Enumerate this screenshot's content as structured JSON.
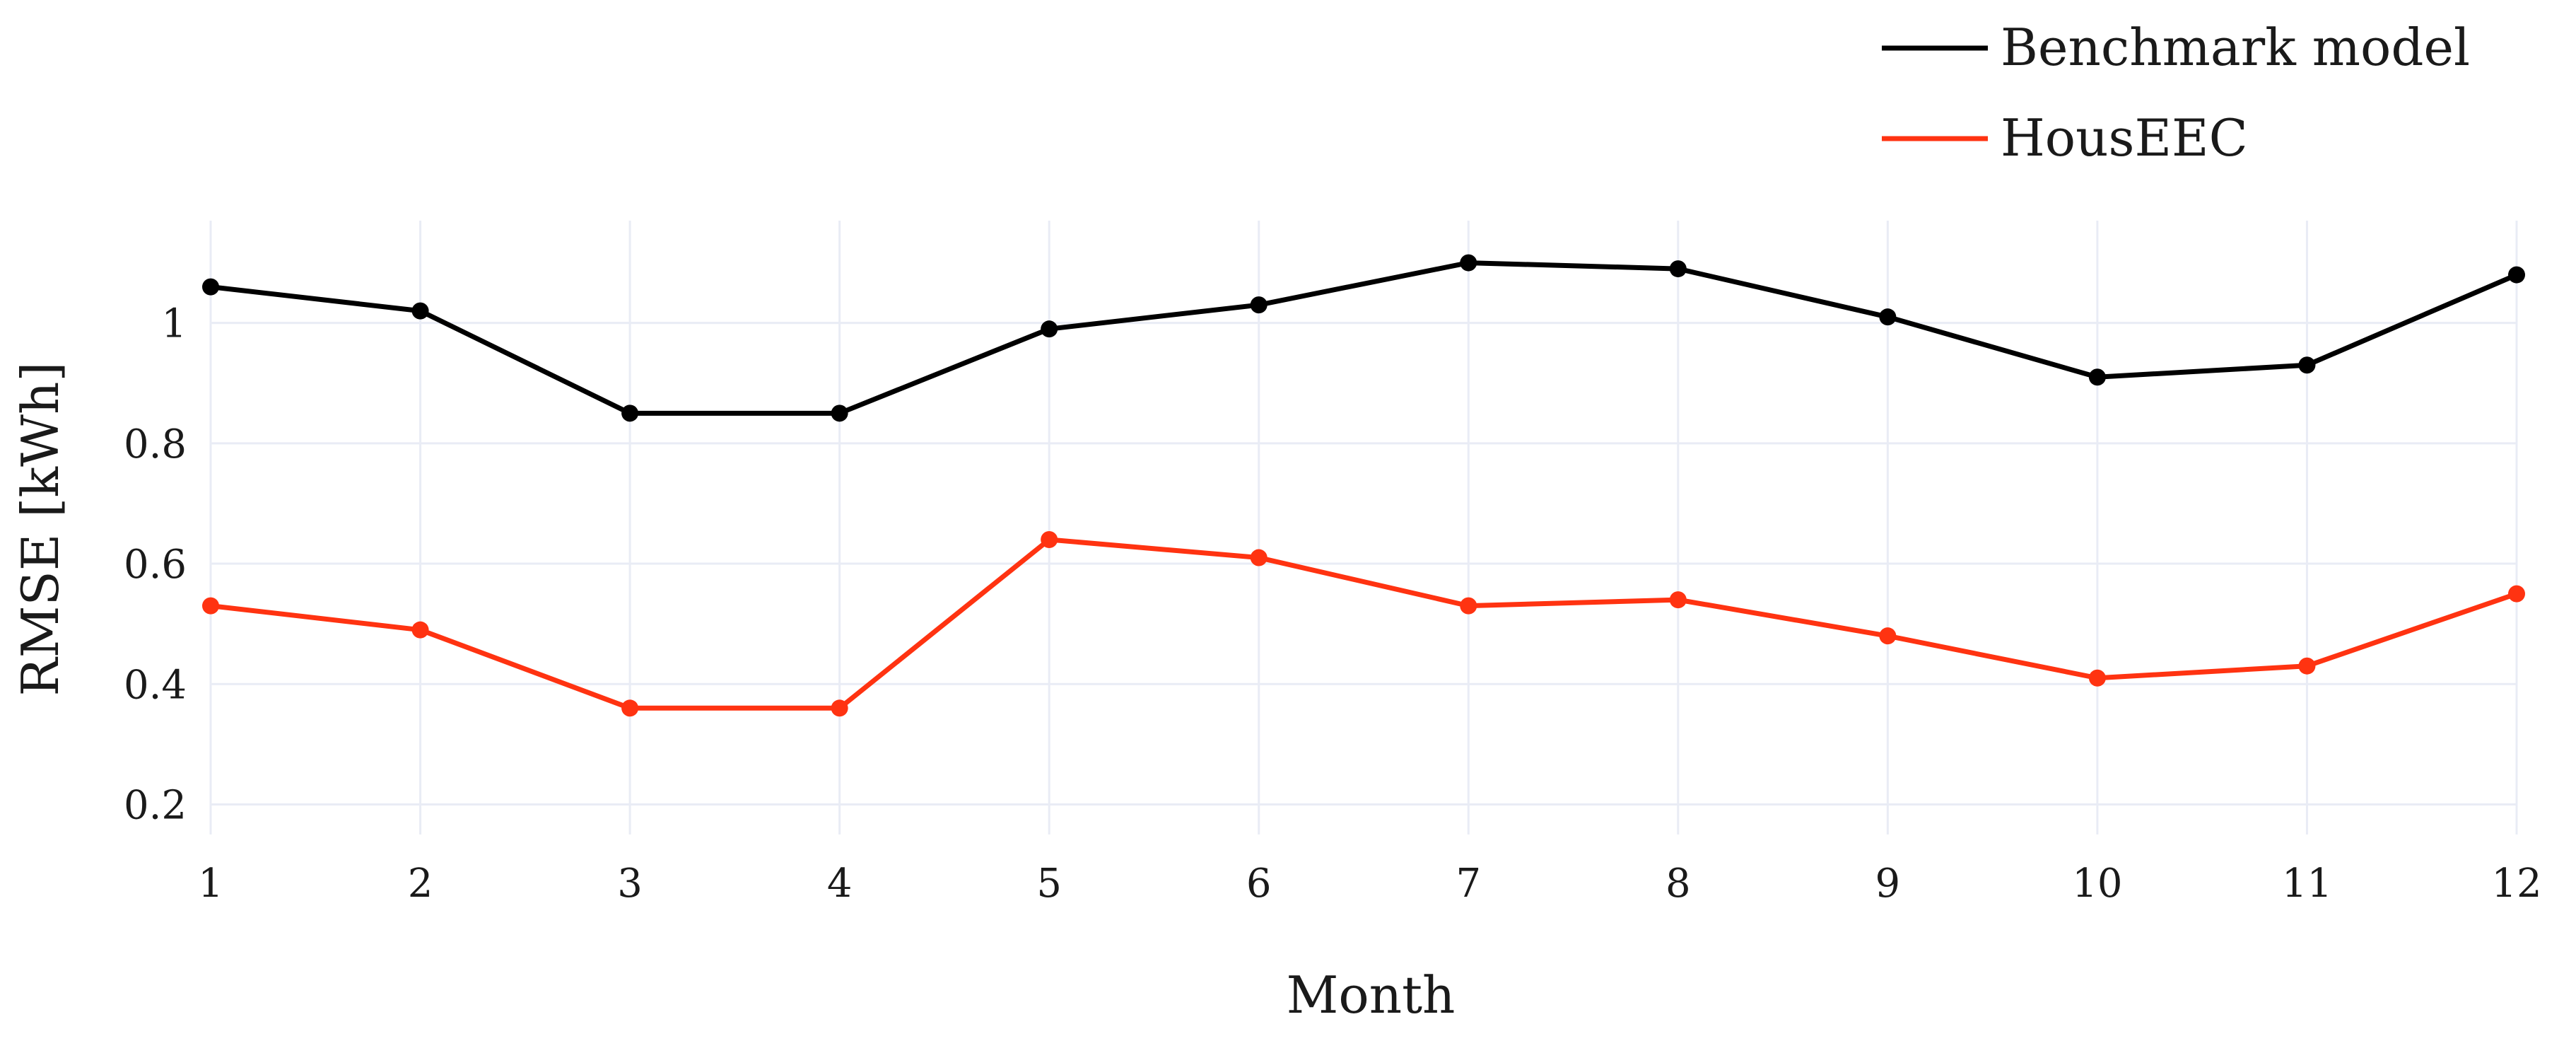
{
  "chart_data": {
    "type": "line",
    "title": "",
    "xlabel": "Month",
    "ylabel": "RMSE [kWh]",
    "x": [
      1,
      2,
      3,
      4,
      5,
      6,
      7,
      8,
      9,
      10,
      11,
      12
    ],
    "x_tick_labels": [
      "1",
      "2",
      "3",
      "4",
      "5",
      "6",
      "7",
      "8",
      "9",
      "10",
      "11",
      "12"
    ],
    "xlim": [
      1,
      12
    ],
    "ylim": [
      0.15,
      1.17
    ],
    "y_ticks": [
      0.2,
      0.4,
      0.6,
      0.8,
      1
    ],
    "y_tick_labels": [
      "0.2",
      "0.4",
      "0.6",
      "0.8",
      "1"
    ],
    "grid": true,
    "legend_position": "top-right",
    "series": [
      {
        "name": "Benchmark model",
        "color": "#000000",
        "values": [
          1.06,
          1.02,
          0.85,
          0.85,
          0.99,
          1.03,
          1.1,
          1.09,
          1.01,
          0.91,
          0.93,
          1.08
        ]
      },
      {
        "name": "HousEEC",
        "color": "#ff3311",
        "values": [
          0.53,
          0.49,
          0.36,
          0.36,
          0.64,
          0.61,
          0.53,
          0.54,
          0.48,
          0.41,
          0.43,
          0.55
        ]
      }
    ]
  }
}
